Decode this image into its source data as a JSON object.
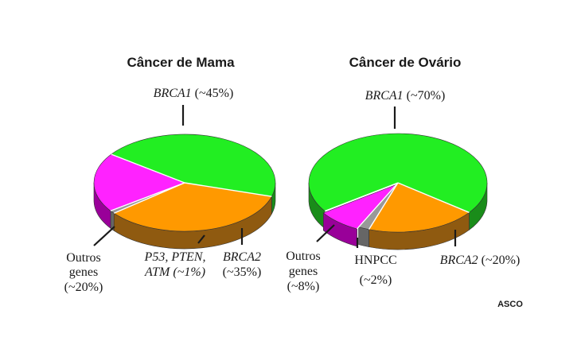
{
  "credit": "ASCO",
  "chart_data": [
    {
      "type": "pie",
      "title": "Câncer de Mama",
      "slices": [
        {
          "name": "BRCA1",
          "value": 45,
          "display": "(~45%)",
          "color": "#22ee22",
          "side_color": "#1a8c1a",
          "italic_name": true
        },
        {
          "name": "BRCA2",
          "value": 35,
          "display": "(~35%)",
          "color": "#ff9900",
          "side_color": "#8f5a10",
          "italic_name": true
        },
        {
          "name": "P53, PTEN, ATM",
          "value": 1,
          "display": "(~1%)",
          "color": "#999999",
          "side_color": "#666666",
          "italic_name": true
        },
        {
          "name": "Outros genes",
          "value": 20,
          "display": "(~20%)",
          "color": "#ff22ff",
          "side_color": "#990099",
          "italic_name": false
        }
      ]
    },
    {
      "type": "pie",
      "title": "Câncer de Ovário",
      "slices": [
        {
          "name": "BRCA1",
          "value": 70,
          "display": "(~70%)",
          "color": "#22ee22",
          "side_color": "#1a8c1a",
          "italic_name": true
        },
        {
          "name": "BRCA2",
          "value": 20,
          "display": "(~20%)",
          "color": "#ff9900",
          "side_color": "#8f5a10",
          "italic_name": true
        },
        {
          "name": "HNPCC",
          "value": 2,
          "display": "(~2%)",
          "color": "#999999",
          "side_color": "#666666",
          "italic_name": false
        },
        {
          "name": "Outros genes",
          "value": 8,
          "display": "(~8%)",
          "color": "#ff22ff",
          "side_color": "#990099",
          "italic_name": false
        }
      ]
    }
  ]
}
